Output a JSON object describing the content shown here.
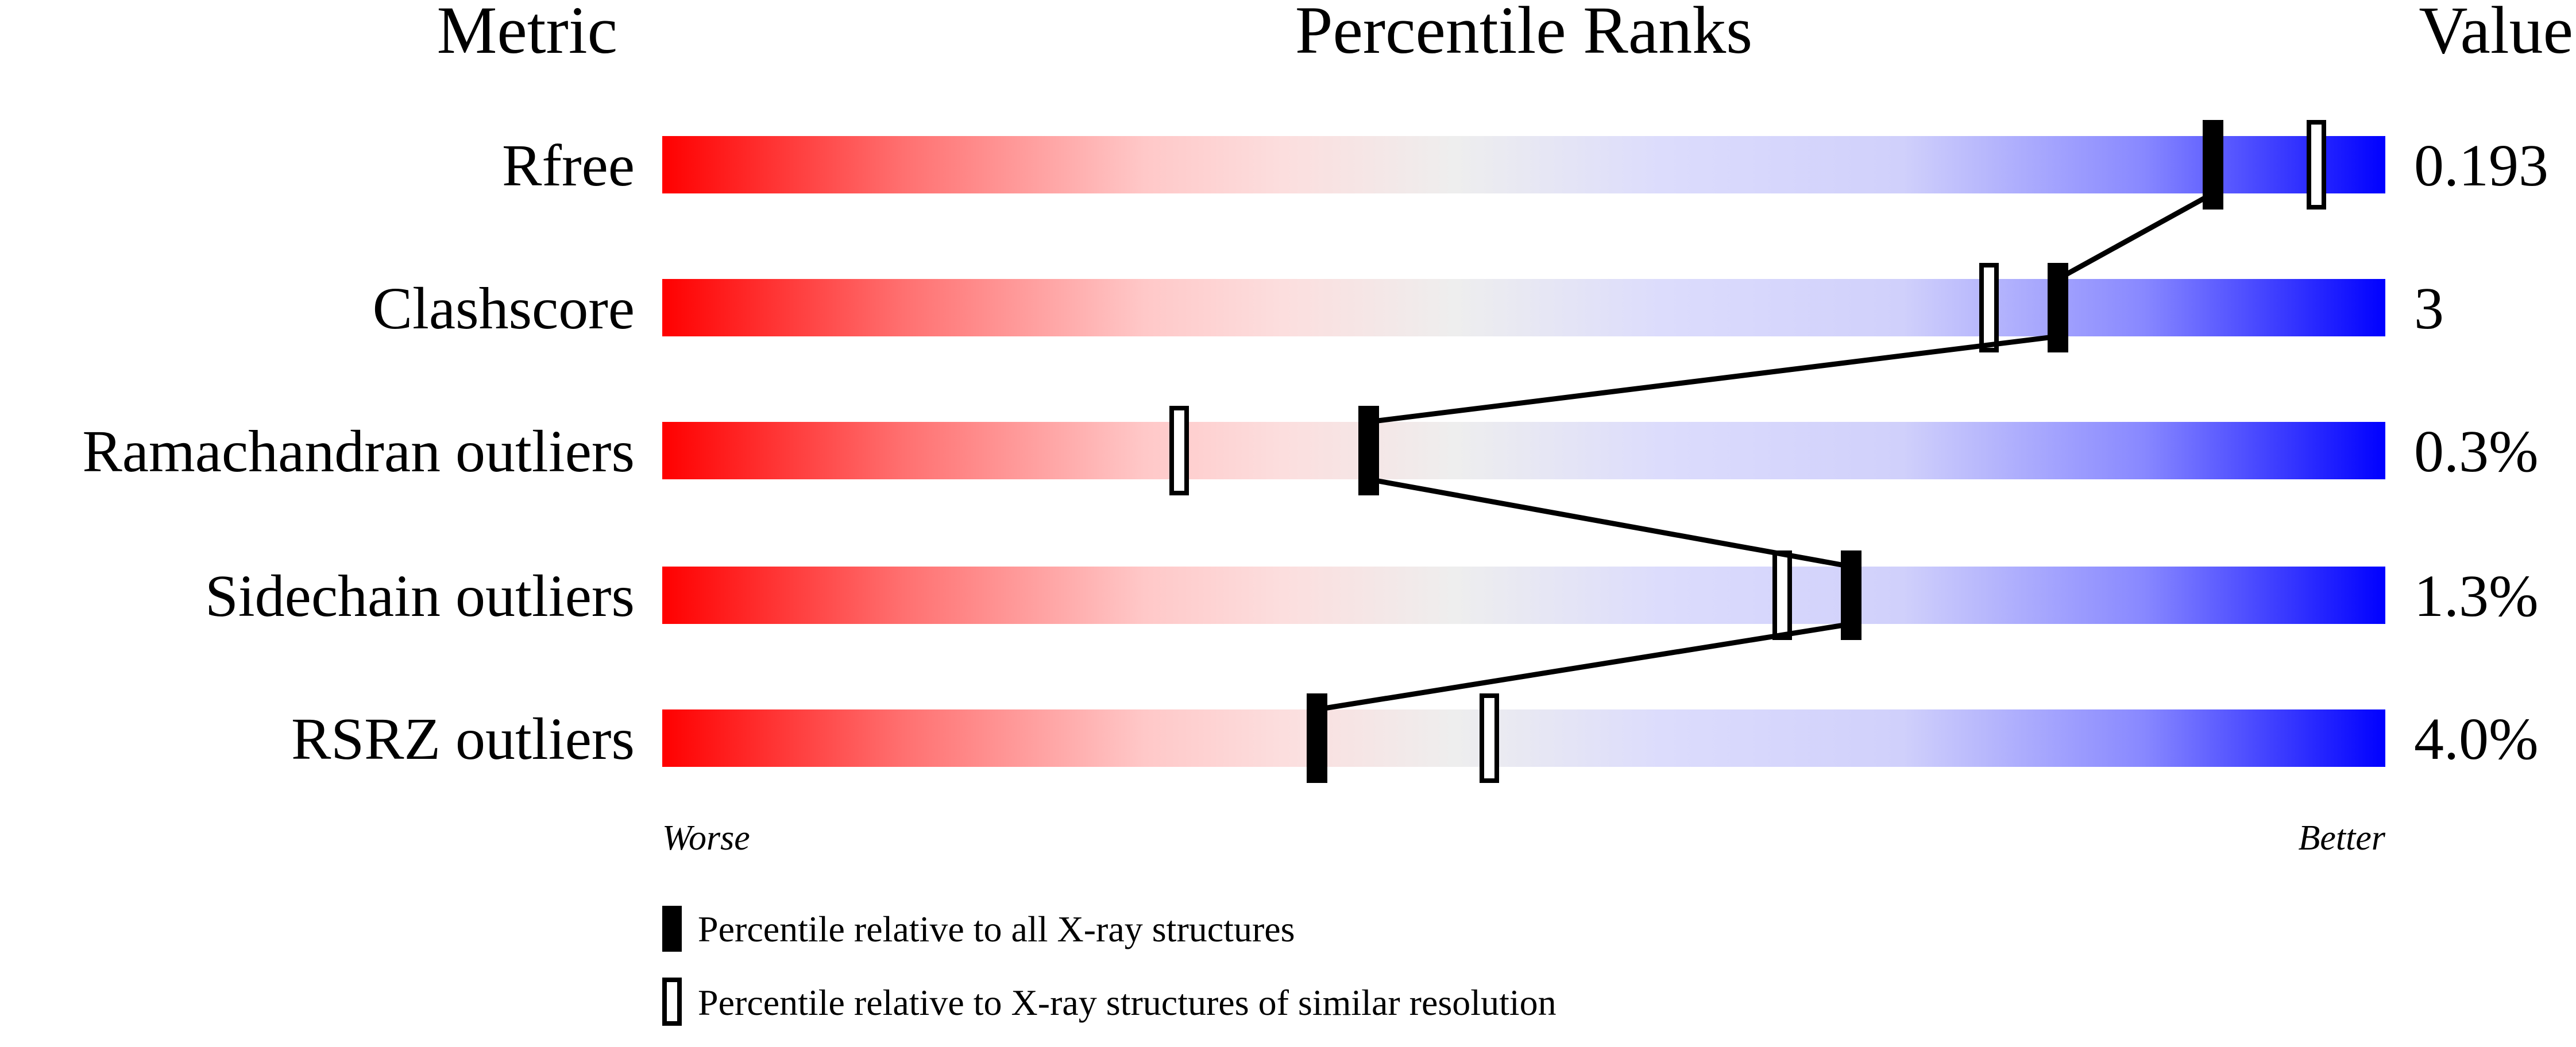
{
  "chart_data": {
    "type": "percentile-slider",
    "headers": {
      "metric": "Metric",
      "ranks": "Percentile Ranks",
      "value": "Value"
    },
    "xlim": [
      0,
      100
    ],
    "axis": {
      "left": "Worse",
      "right": "Better"
    },
    "colors": {
      "worse": "#ff0000",
      "middle": "#eeeeee",
      "better": "#0000ff",
      "marker": "#000000"
    },
    "metrics": [
      {
        "name": "Rfree",
        "value": "0.193",
        "percentile_all": 90,
        "percentile_similar": 96
      },
      {
        "name": "Clashscore",
        "value": "3",
        "percentile_all": 81,
        "percentile_similar": 77
      },
      {
        "name": "Ramachandran outliers",
        "value": "0.3%",
        "percentile_all": 41,
        "percentile_similar": 30
      },
      {
        "name": "Sidechain outliers",
        "value": "1.3%",
        "percentile_all": 69,
        "percentile_similar": 65
      },
      {
        "name": "RSRZ outliers",
        "value": "4.0%",
        "percentile_all": 38,
        "percentile_similar": 48
      }
    ],
    "legend": [
      {
        "marker": "filled",
        "label": "Percentile relative to all X-ray structures"
      },
      {
        "marker": "open",
        "label": "Percentile relative to X-ray structures of similar resolution"
      }
    ]
  }
}
